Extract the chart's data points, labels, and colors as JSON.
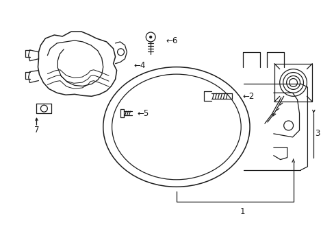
{
  "background_color": "#ffffff",
  "line_color": "#1a1a1a",
  "figure_size": [
    4.89,
    3.6
  ],
  "dpi": 100,
  "font_size": 8.5
}
